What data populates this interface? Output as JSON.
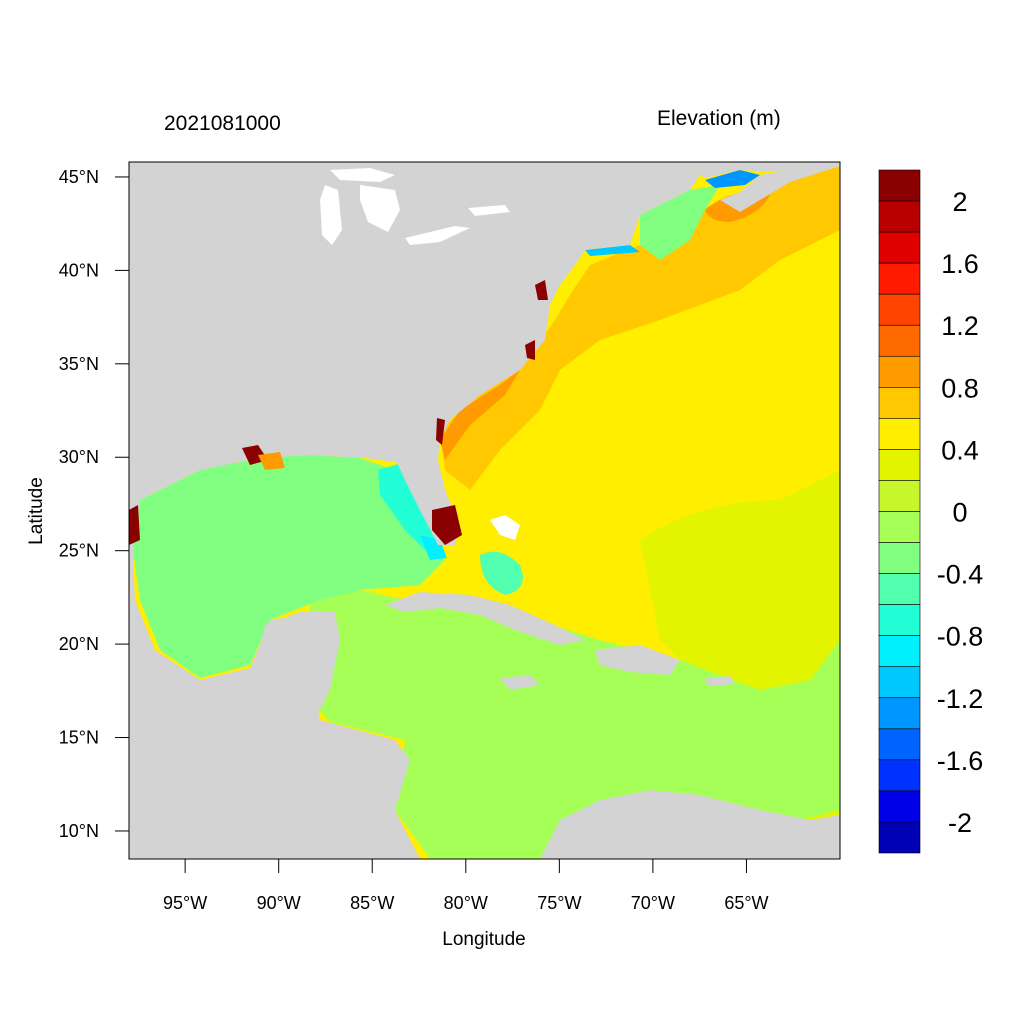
{
  "title_left": "2021081000",
  "title_right": "Elevation (m)",
  "axes": {
    "xlabel": "Longitude",
    "ylabel": "Latitude",
    "x_ticks": [
      "95°W",
      "90°W",
      "85°W",
      "80°W",
      "75°W",
      "70°W",
      "65°W"
    ],
    "y_ticks": [
      "45°N",
      "40°N",
      "35°N",
      "30°N",
      "25°N",
      "20°N",
      "15°N",
      "10°N"
    ],
    "lon_range": [
      -98,
      -60
    ],
    "lat_range": [
      8.5,
      45.8
    ]
  },
  "colorbar": {
    "labels": [
      "2",
      "1.6",
      "1.2",
      "0.8",
      "0.4",
      "0",
      "-0.4",
      "-0.8",
      "-1.2",
      "-1.6",
      "-2"
    ],
    "colors": [
      "#8b0000",
      "#b80000",
      "#e00000",
      "#ff1a00",
      "#ff4500",
      "#ff6a00",
      "#ff9a00",
      "#ffc800",
      "#ffee00",
      "#e3f400",
      "#c7f62a",
      "#a6ff56",
      "#80ff80",
      "#52ffae",
      "#22ffd6",
      "#00f0ff",
      "#00c8ff",
      "#0096ff",
      "#0064ff",
      "#0032ff",
      "#0000e6",
      "#0000b4"
    ]
  },
  "map_colors": {
    "land": "#d3d3d3",
    "lakes": "#ffffff"
  }
}
